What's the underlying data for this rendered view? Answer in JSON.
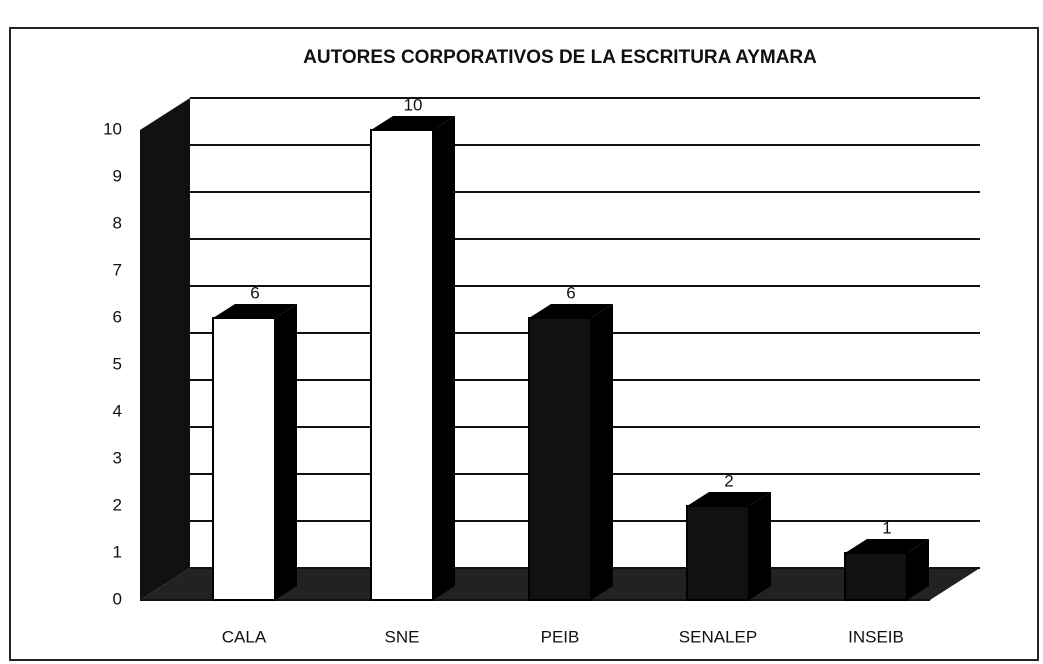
{
  "chart_data": {
    "type": "bar3d",
    "title": "AUTORES CORPORATIVOS DE LA ESCRITURA AYMARA",
    "categories": [
      "CALA",
      "SNE",
      "PEIB",
      "SENALEP",
      "INSEIB"
    ],
    "values": [
      6,
      10,
      6,
      2,
      1
    ],
    "colors": [
      "#ffffff",
      "#ffffff",
      "#111111",
      "#111111",
      "#111111"
    ],
    "ylim": [
      0,
      10
    ],
    "yticks": [
      0,
      1,
      2,
      3,
      4,
      5,
      6,
      7,
      8,
      9,
      10
    ],
    "grid": true
  }
}
